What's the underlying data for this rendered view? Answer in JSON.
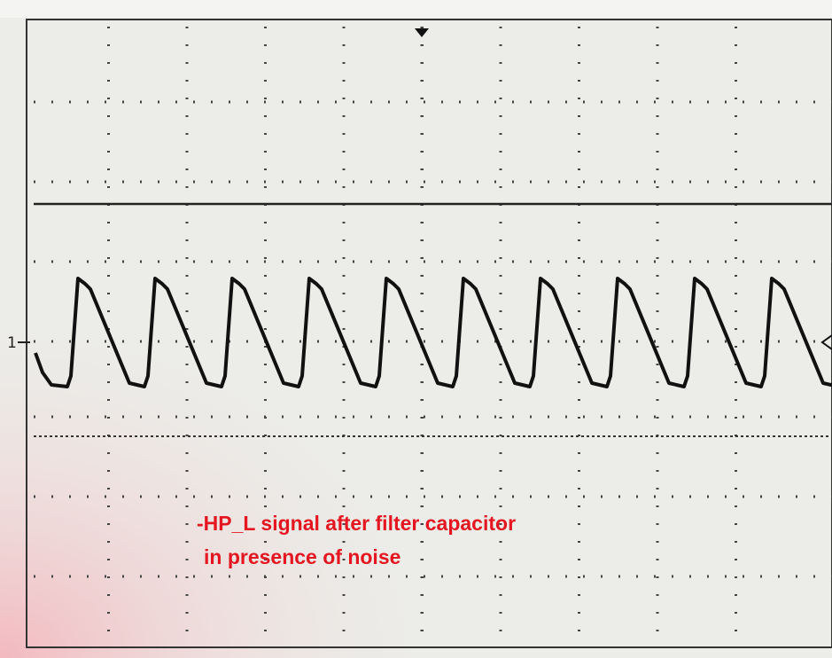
{
  "screen": {
    "channel_marker": "1"
  },
  "annotation": {
    "lines": [
      "-HP_L signal after filter capacitor",
      "in presence of noise"
    ]
  }
}
